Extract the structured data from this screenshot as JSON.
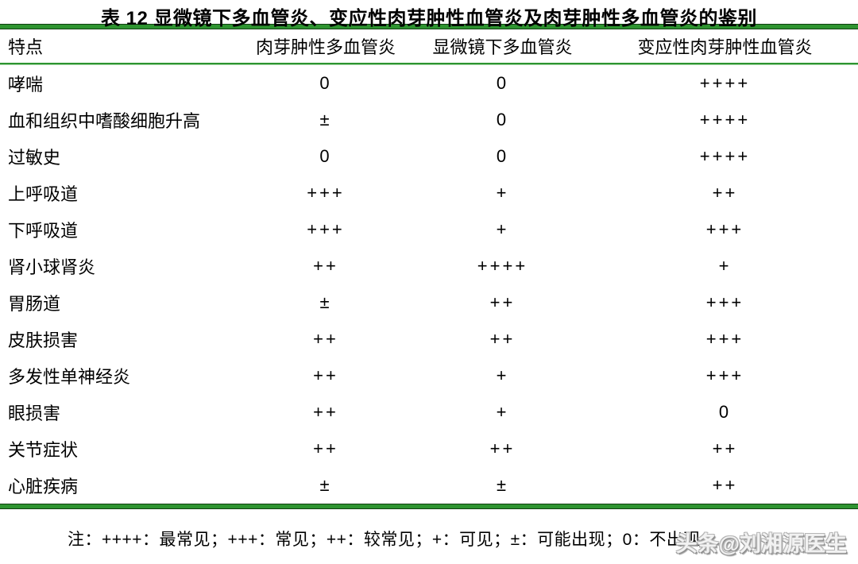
{
  "title": "表 12 显微镜下多血管炎、变应性肉芽肿性血管炎及肉芽肿性多血管炎的鉴别",
  "table": {
    "columns": [
      "特点",
      "肉芽肿性多血管炎",
      "显微镜下多血管炎",
      "变应性肉芽肿性血管炎"
    ],
    "rows": [
      {
        "feature": "哮喘",
        "values": [
          "0",
          "0",
          "++++"
        ]
      },
      {
        "feature": "血和组织中嗜酸细胞升高",
        "values": [
          "±",
          "0",
          "++++"
        ]
      },
      {
        "feature": "过敏史",
        "values": [
          "0",
          "0",
          "++++"
        ]
      },
      {
        "feature": "上呼吸道",
        "values": [
          "+++",
          "+",
          "++"
        ]
      },
      {
        "feature": "下呼吸道",
        "values": [
          "+++",
          "+",
          "+++"
        ]
      },
      {
        "feature": "肾小球肾炎",
        "values": [
          "++",
          "++++",
          "+"
        ]
      },
      {
        "feature": "胃肠道",
        "values": [
          "±",
          "++",
          "+++"
        ]
      },
      {
        "feature": "皮肤损害",
        "values": [
          "++",
          "++",
          "+++"
        ]
      },
      {
        "feature": "多发性单神经炎",
        "values": [
          "++",
          "+",
          "+++"
        ]
      },
      {
        "feature": "眼损害",
        "values": [
          "++",
          "+",
          "0"
        ]
      },
      {
        "feature": "关节症状",
        "values": [
          "++",
          "++",
          "++"
        ]
      },
      {
        "feature": "心脏疾病",
        "values": [
          "±",
          "±",
          "++"
        ]
      }
    ]
  },
  "note": "注：++++：最常见；+++：常见；++：较常见；+：可见；±：可能出现；0：不出现",
  "watermark": "头条@刘湘源医生",
  "colors": {
    "rule_green": "#2e9430",
    "rule_edge": "#0f3f10",
    "text": "#000000",
    "background": "#ffffff",
    "watermark_outline": "#9a9a9a"
  }
}
